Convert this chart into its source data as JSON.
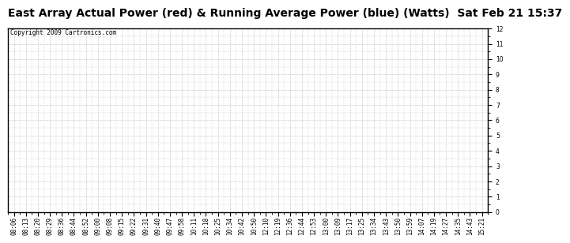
{
  "title": "East Array Actual Power (red) & Running Average Power (blue) (Watts)  Sat Feb 21 15:37",
  "copyright_text": "Copyright 2009 Cartronics.com",
  "x_labels": [
    "08:06",
    "08:13",
    "08:20",
    "08:29",
    "08:36",
    "08:44",
    "08:52",
    "09:00",
    "09:08",
    "09:15",
    "09:22",
    "09:31",
    "09:40",
    "09:47",
    "09:58",
    "10:11",
    "10:18",
    "10:25",
    "10:34",
    "10:42",
    "10:50",
    "12:10",
    "12:19",
    "12:36",
    "12:44",
    "12:53",
    "13:00",
    "13:09",
    "13:17",
    "13:25",
    "13:34",
    "13:43",
    "13:50",
    "13:59",
    "14:07",
    "14:19",
    "14:27",
    "14:35",
    "14:43",
    "15:21"
  ],
  "ylim": [
    0.0,
    12.0
  ],
  "yticks": [
    0.0,
    1.0,
    2.0,
    3.0,
    4.0,
    5.0,
    6.0,
    7.0,
    8.0,
    9.0,
    10.0,
    11.0,
    12.0
  ],
  "bg_color": "#ffffff",
  "grid_color": "#cccccc",
  "title_fontsize": 10,
  "tick_fontsize": 5.5,
  "copyright_fontsize": 5.5,
  "border_color": "#000000",
  "title_bg": "#d0d0d0"
}
